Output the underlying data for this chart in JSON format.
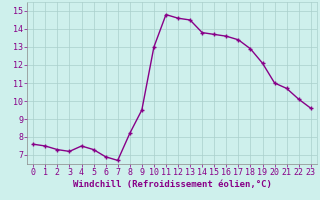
{
  "x": [
    0,
    1,
    2,
    3,
    4,
    5,
    6,
    7,
    8,
    9,
    10,
    11,
    12,
    13,
    14,
    15,
    16,
    17,
    18,
    19,
    20,
    21,
    22,
    23
  ],
  "y": [
    7.6,
    7.5,
    7.3,
    7.2,
    7.5,
    7.3,
    6.9,
    6.7,
    8.2,
    9.5,
    13.0,
    14.8,
    14.6,
    14.5,
    13.8,
    13.7,
    13.6,
    13.4,
    12.9,
    12.1,
    11.0,
    10.7,
    10.1,
    9.6
  ],
  "line_color": "#880088",
  "marker": "P",
  "marker_size": 2.5,
  "linewidth": 1.0,
  "bg_color": "#cef0ec",
  "grid_color": "#aacfcb",
  "xlabel": "Windchill (Refroidissement éolien,°C)",
  "xlabel_fontsize": 6.5,
  "ylabel_ticks": [
    7,
    8,
    9,
    10,
    11,
    12,
    13,
    14,
    15
  ],
  "xlim": [
    -0.5,
    23.5
  ],
  "ylim": [
    6.5,
    15.5
  ],
  "tick_fontsize": 6.0
}
